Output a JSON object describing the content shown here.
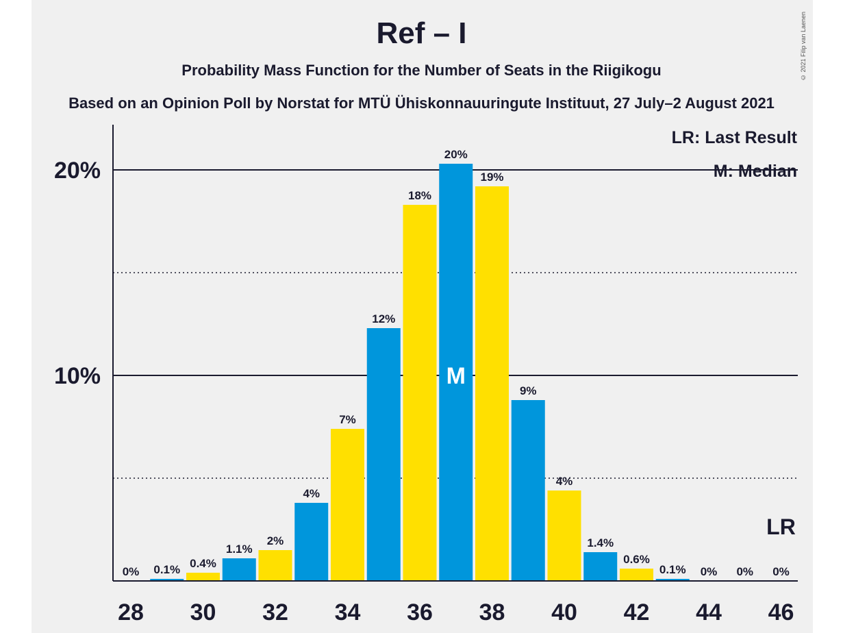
{
  "chart_data": {
    "type": "bar",
    "title": "Ref – I",
    "subtitle": "Probability Mass Function for the Number of Seats in the Riigikogu",
    "subtitle2": "Based on an Opinion Poll by Norstat for MTÜ Ühiskonnauuringute Instituut, 27 July–2 August 2021",
    "copyright": "© 2021 Filip van Laenen",
    "x": [
      28,
      29,
      30,
      31,
      32,
      33,
      34,
      35,
      36,
      37,
      38,
      39,
      40,
      41,
      42,
      43,
      44,
      45,
      46
    ],
    "values": [
      0.0,
      0.1,
      0.4,
      1.1,
      1.5,
      3.8,
      7.4,
      12.3,
      18.3,
      20.3,
      19.2,
      8.8,
      4.4,
      1.4,
      0.6,
      0.1,
      0.0,
      0.0,
      0.0
    ],
    "labels": [
      "0%",
      "0.1%",
      "0.4%",
      "1.1%",
      "2%",
      "4%",
      "7%",
      "12%",
      "18%",
      "20%",
      "19%",
      "9%",
      "4%",
      "1.4%",
      "0.6%",
      "0.1%",
      "0%",
      "0%",
      "0%"
    ],
    "x_tick_labels": [
      "28",
      "30",
      "32",
      "34",
      "36",
      "38",
      "40",
      "42",
      "44",
      "46"
    ],
    "y_tick_labels": [
      "10%",
      "20%"
    ],
    "ylim": [
      0,
      22
    ],
    "solid_gridlines": [
      10,
      20
    ],
    "dotted_gridlines": [
      5,
      15
    ],
    "median_seat": 37,
    "median_mark": "M",
    "last_result_seat": 46,
    "last_result_mark": "LR",
    "legend": [
      "LR: Last Result",
      "M: Median"
    ],
    "colors": {
      "blue": "#0096dc",
      "yellow": "#ffe000",
      "background": "#f0f0f0",
      "text": "#1a1a2e"
    }
  }
}
